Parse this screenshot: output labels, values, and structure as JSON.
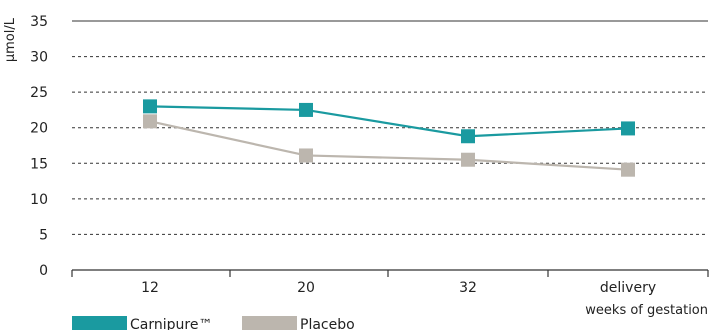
{
  "chart_data": {
    "type": "line",
    "ylabel": "µmol/L",
    "xlabel": "weeks of gestation",
    "categories": [
      "12",
      "20",
      "32",
      "delivery"
    ],
    "ylim": [
      0,
      35
    ],
    "yticks": [
      0,
      5,
      10,
      15,
      20,
      25,
      30,
      35
    ],
    "grid": true,
    "legend": "bottom-left",
    "series": [
      {
        "name": "Carnipure™",
        "color": "#1a9aa0",
        "values": [
          23.0,
          22.5,
          18.8,
          19.9
        ]
      },
      {
        "name": "Placebo",
        "color": "#bcb6ae",
        "values": [
          20.9,
          16.1,
          15.5,
          14.1
        ]
      }
    ]
  }
}
